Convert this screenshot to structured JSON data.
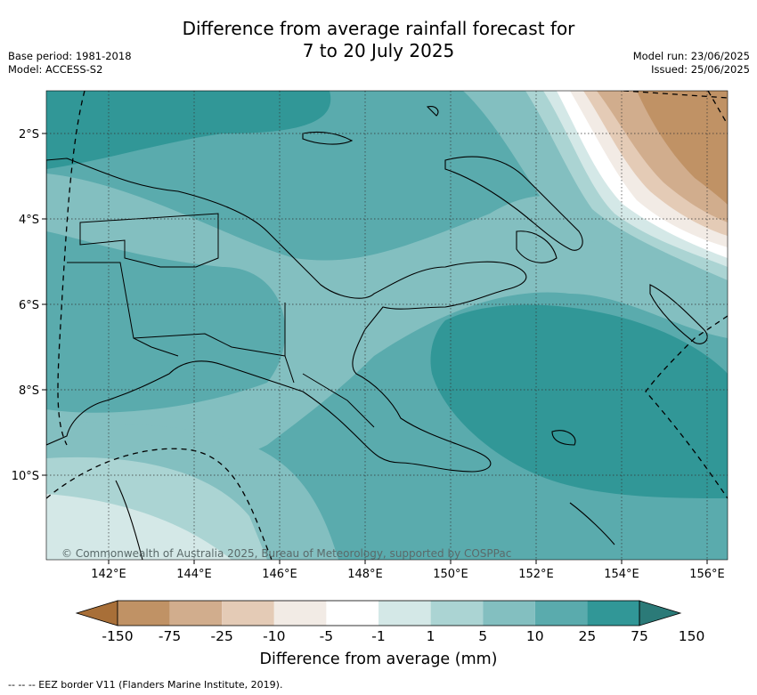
{
  "title_line1": "Difference from average rainfall forecast for",
  "title_line2": "7 to 20 July 2025",
  "base_period": "Base period: 1981-2018",
  "model": "Model: ACCESS-S2",
  "model_run": "Model run: 23/06/2025",
  "issued": "Issued: 25/06/2025",
  "copyright": "© Commonwealth of Australia 2025, Bureau of Meteorology, supported by COSPPac",
  "lat_labels": [
    "2°S",
    "4°S",
    "6°S",
    "8°S",
    "10°S"
  ],
  "lon_labels": [
    "142°E",
    "144°E",
    "146°E",
    "148°E",
    "150°E",
    "152°E",
    "154°E",
    "156°E"
  ],
  "legend": {
    "title": "Difference from average (mm)",
    "ticks": [
      "-150",
      "-75",
      "-25",
      "-10",
      "-5",
      "-1",
      "1",
      "5",
      "10",
      "25",
      "75",
      "150"
    ],
    "colors": [
      "#a86f38",
      "#c09265",
      "#d1ad8d",
      "#e4cbb6",
      "#f2ebe5",
      "#ffffff",
      "#d4e8e7",
      "#abd4d3",
      "#83bfc0",
      "#5aabad",
      "#319797",
      "#2b7a78"
    ]
  },
  "eez_note": "--  --  -- EEZ border V11 (Flanders Marine Institute, 2019)."
}
